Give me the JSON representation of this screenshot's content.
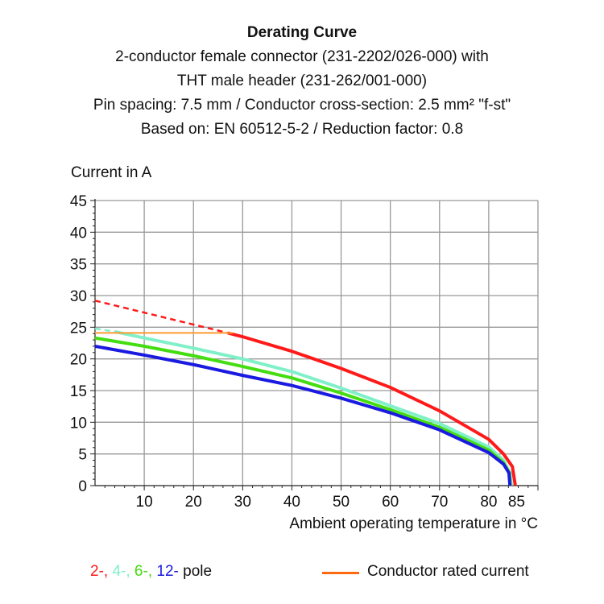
{
  "chart_data": {
    "type": "line",
    "title": "Derating Curve",
    "subtitle_lines": [
      "2-conductor female connector (231-2202/026-000) with",
      "THT male header (231-262/001-000)",
      "Pin spacing: 7.5 mm / Conductor cross-section: 2.5 mm² \"f-st\"",
      "Based on: EN 60512-5-2 / Reduction factor: 0.8"
    ],
    "ylabel": "Current in A",
    "xlabel": "Ambient operating temperature in °C",
    "xlim": [
      0,
      90
    ],
    "ylim": [
      0,
      45
    ],
    "xticks": [
      10,
      20,
      30,
      40,
      50,
      60,
      70,
      80,
      85
    ],
    "yticks": [
      0,
      5,
      10,
      15,
      20,
      25,
      30,
      35,
      40,
      45
    ],
    "grid": true,
    "series": [
      {
        "color": "#ff1a1a",
        "dashed_until": 27,
        "x": [
          0,
          27,
          30,
          40,
          50,
          60,
          70,
          80,
          83,
          84.8,
          85.2,
          85.4
        ],
        "y": [
          29.2,
          24.1,
          23.5,
          21.2,
          18.5,
          15.5,
          11.8,
          7.3,
          5,
          3,
          1,
          0
        ]
      },
      {
        "color": "#80f0c8",
        "dashed_until": 4,
        "x": [
          0,
          4,
          10,
          20,
          30,
          40,
          50,
          60,
          70,
          80,
          83,
          84.3,
          84.6
        ],
        "y": [
          24.8,
          24.3,
          23.3,
          21.7,
          20,
          18,
          15.4,
          12.6,
          9.8,
          6.1,
          4,
          2,
          0
        ]
      },
      {
        "color": "#44dd11",
        "x": [
          0,
          10,
          20,
          30,
          40,
          50,
          60,
          70,
          80,
          83,
          84.2,
          84.4
        ],
        "y": [
          23.3,
          22,
          20.5,
          18.8,
          17,
          14.6,
          12,
          9.2,
          5.6,
          3.6,
          2,
          0
        ]
      },
      {
        "color": "#1a1ae0",
        "x": [
          0,
          10,
          20,
          30,
          40,
          50,
          60,
          70,
          80,
          83,
          84.1,
          84.3
        ],
        "y": [
          22,
          20.6,
          19.1,
          17.4,
          15.8,
          13.8,
          11.5,
          8.8,
          5.2,
          3.4,
          2,
          0
        ]
      },
      {
        "color": "#ff9a30",
        "name": "Conductor rated current",
        "x": [
          0,
          28
        ],
        "y": [
          24.1,
          24.1
        ]
      }
    ],
    "legend": {
      "poles": [
        {
          "text": "2-,",
          "color": "#ff1a1a"
        },
        {
          "text": " 4-,",
          "color": "#80f0c8"
        },
        {
          "text": " 6-,",
          "color": "#44dd11"
        },
        {
          "text": " 12-",
          "color": "#1a1ae0"
        },
        {
          "text": " pole",
          "color": "#111111"
        }
      ],
      "rated_label": "Conductor rated current",
      "rated_color": "#ff6a10",
      "placement": "bottom"
    }
  }
}
